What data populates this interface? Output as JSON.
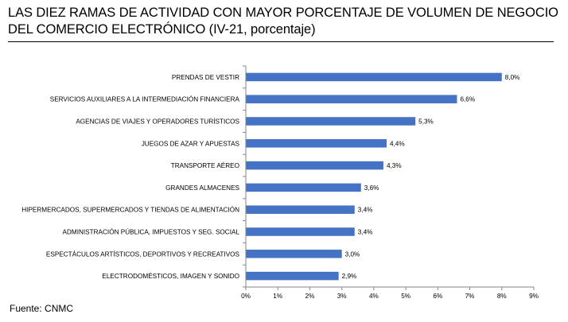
{
  "title": {
    "line1": "LAS DIEZ RAMAS DE ACTIVIDAD CON MAYOR PORCENTAJE DE VOLUMEN DE NEGOCIO",
    "line2": "DEL COMERCIO ELECTRÓNICO (IV-21, porcentaje)"
  },
  "source": "Fuente: CNMC",
  "colors": {
    "bar": "#4472C4",
    "axis": "#868686"
  },
  "chart_data": {
    "type": "bar",
    "orientation": "horizontal",
    "categories": [
      "PRENDAS DE VESTIR",
      "SERVICIOS AUXILIARES A LA INTERMEDIACIÓN FINANCIERA",
      "AGENCIAS DE VIAJES Y OPERADORES TURÍSTICOS",
      "JUEGOS DE AZAR Y APUESTAS",
      "TRANSPORTE AÉREO",
      "GRANDES ALMACENES",
      "HIPERMERCADOS, SUPERMERCADOS Y TIENDAS DE ALIMENTACIÓN",
      "ADMINISTRACIÓN PÚBLICA, IMPUESTOS Y SEG. SOCIAL",
      "ESPECTÁCULOS ARTÍSTICOS, DEPORTIVOS Y RECREATIVOS",
      "ELECTRODOMÉSTICOS,  IMAGEN Y SONIDO"
    ],
    "values": [
      8.0,
      6.6,
      5.3,
      4.4,
      4.3,
      3.6,
      3.4,
      3.4,
      3.0,
      2.9
    ],
    "value_labels": [
      "8,0%",
      "6,6%",
      "5,3%",
      "4,4%",
      "4,3%",
      "3,6%",
      "3,4%",
      "3,4%",
      "3,0%",
      "2,9%"
    ],
    "xlim": [
      0,
      9
    ],
    "xticks": [
      "0%",
      "1%",
      "2%",
      "3%",
      "4%",
      "5%",
      "6%",
      "7%",
      "8%",
      "9%"
    ],
    "grid": false,
    "legend": "none"
  }
}
